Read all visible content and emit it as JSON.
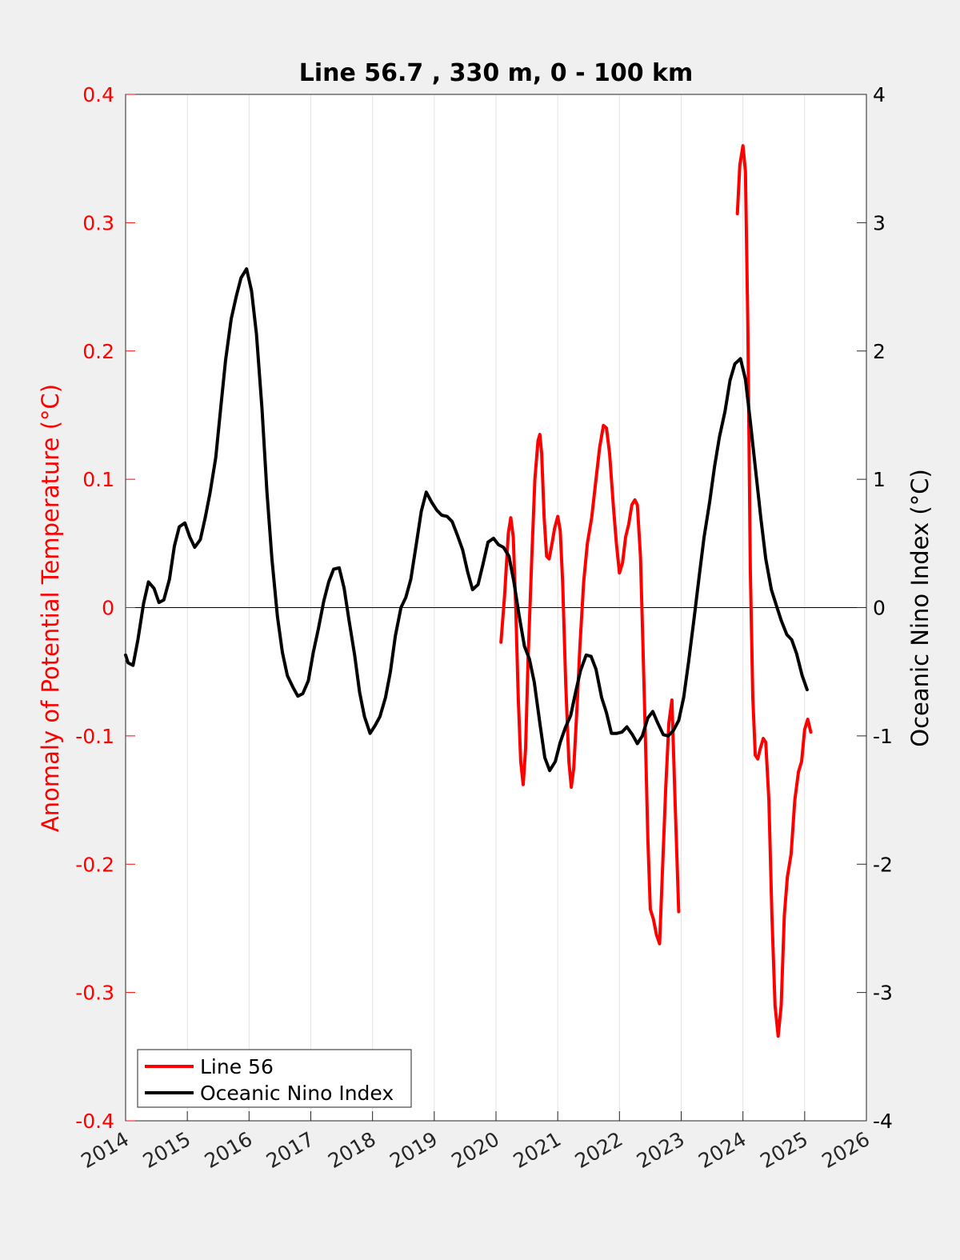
{
  "chart_data": {
    "type": "line",
    "title": "Line 56.7 , 330 m, 0 - 100 km",
    "xlabel": "",
    "ylabel_left": "Anomaly of Potential Temperature (°C)",
    "ylabel_right": "Oceanic Nino Index (°C)",
    "xlim": [
      2014,
      2026
    ],
    "ylim_left": [
      -0.4,
      0.4
    ],
    "ylim_right": [
      -4,
      4
    ],
    "x_ticks": [
      2014,
      2015,
      2016,
      2017,
      2018,
      2019,
      2020,
      2021,
      2022,
      2023,
      2024,
      2025,
      2026
    ],
    "x_tick_labels": [
      "2014",
      "2015",
      "2016",
      "2017",
      "2018",
      "2019",
      "2020",
      "2021",
      "2022",
      "2023",
      "2024",
      "2025",
      "2026"
    ],
    "y_left_ticks": [
      -0.4,
      -0.3,
      -0.2,
      -0.1,
      0,
      0.1,
      0.2,
      0.3,
      0.4
    ],
    "y_left_tick_labels": [
      "-0.4",
      "-0.3",
      "-0.2",
      "-0.1",
      "0",
      "0.1",
      "0.2",
      "0.3",
      "0.4"
    ],
    "y_right_ticks": [
      -4,
      -3,
      -2,
      -1,
      0,
      1,
      2,
      3,
      4
    ],
    "y_right_tick_labels": [
      "-4",
      "-3",
      "-2",
      "-1",
      "0",
      "1",
      "2",
      "3",
      "4"
    ],
    "grid": "vertical",
    "zero_line": true,
    "legend_position": "bottom-left",
    "colors": {
      "line56": "#ff0000",
      "oni": "#000000",
      "left_axis": "#ff0000",
      "right_axis": "#000000"
    },
    "series": [
      {
        "name": "Line 56",
        "axis": "left",
        "color": "#ff0000",
        "segments": [
          [
            [
              2020.08,
              -0.027
            ],
            [
              2020.14,
              0.01
            ],
            [
              2020.2,
              0.058
            ],
            [
              2020.24,
              0.07
            ],
            [
              2020.28,
              0.055
            ],
            [
              2020.32,
              0.0
            ],
            [
              2020.36,
              -0.07
            ],
            [
              2020.4,
              -0.12
            ],
            [
              2020.44,
              -0.138
            ],
            [
              2020.48,
              -0.11
            ],
            [
              2020.52,
              -0.04
            ],
            [
              2020.58,
              0.04
            ],
            [
              2020.63,
              0.1
            ],
            [
              2020.68,
              0.13
            ],
            [
              2020.71,
              0.135
            ],
            [
              2020.74,
              0.12
            ],
            [
              2020.78,
              0.07
            ],
            [
              2020.82,
              0.04
            ],
            [
              2020.86,
              0.038
            ],
            [
              2020.9,
              0.048
            ],
            [
              2020.95,
              0.062
            ],
            [
              2021.0,
              0.071
            ],
            [
              2021.04,
              0.06
            ],
            [
              2021.08,
              0.02
            ],
            [
              2021.13,
              -0.06
            ],
            [
              2021.18,
              -0.12
            ],
            [
              2021.22,
              -0.14
            ],
            [
              2021.26,
              -0.125
            ],
            [
              2021.31,
              -0.08
            ],
            [
              2021.36,
              -0.03
            ],
            [
              2021.42,
              0.02
            ],
            [
              2021.48,
              0.05
            ],
            [
              2021.55,
              0.07
            ],
            [
              2021.62,
              0.1
            ],
            [
              2021.68,
              0.125
            ],
            [
              2021.74,
              0.142
            ],
            [
              2021.79,
              0.14
            ],
            [
              2021.84,
              0.12
            ],
            [
              2021.9,
              0.08
            ],
            [
              2021.95,
              0.05
            ],
            [
              2022.0,
              0.027
            ],
            [
              2022.05,
              0.035
            ],
            [
              2022.1,
              0.055
            ],
            [
              2022.15,
              0.065
            ],
            [
              2022.2,
              0.08
            ],
            [
              2022.25,
              0.084
            ],
            [
              2022.29,
              0.08
            ],
            [
              2022.34,
              0.04
            ],
            [
              2022.38,
              -0.03
            ],
            [
              2022.42,
              -0.1
            ],
            [
              2022.46,
              -0.18
            ],
            [
              2022.5,
              -0.235
            ],
            [
              2022.55,
              -0.243
            ],
            [
              2022.6,
              -0.255
            ],
            [
              2022.65,
              -0.262
            ],
            [
              2022.7,
              -0.2
            ],
            [
              2022.75,
              -0.14
            ],
            [
              2022.8,
              -0.09
            ],
            [
              2022.85,
              -0.072
            ],
            [
              2022.9,
              -0.15
            ],
            [
              2022.96,
              -0.237
            ]
          ],
          [
            [
              2023.91,
              0.307
            ],
            [
              2023.95,
              0.345
            ],
            [
              2024.0,
              0.36
            ],
            [
              2024.04,
              0.34
            ],
            [
              2024.08,
              0.22
            ],
            [
              2024.12,
              0.03
            ],
            [
              2024.16,
              -0.07
            ],
            [
              2024.2,
              -0.115
            ],
            [
              2024.24,
              -0.118
            ],
            [
              2024.28,
              -0.11
            ],
            [
              2024.33,
              -0.102
            ],
            [
              2024.37,
              -0.105
            ],
            [
              2024.42,
              -0.15
            ],
            [
              2024.47,
              -0.24
            ],
            [
              2024.52,
              -0.31
            ],
            [
              2024.57,
              -0.334
            ],
            [
              2024.62,
              -0.31
            ],
            [
              2024.67,
              -0.24
            ],
            [
              2024.72,
              -0.21
            ],
            [
              2024.78,
              -0.192
            ],
            [
              2024.84,
              -0.15
            ],
            [
              2024.9,
              -0.128
            ],
            [
              2024.95,
              -0.12
            ],
            [
              2025.0,
              -0.095
            ],
            [
              2025.05,
              -0.087
            ],
            [
              2025.1,
              -0.097
            ]
          ]
        ]
      },
      {
        "name": "Oceanic Nino Index",
        "axis": "right",
        "color": "#000000",
        "segments": [
          [
            [
              2014.0,
              -0.37
            ],
            [
              2014.04,
              -0.43
            ],
            [
              2014.12,
              -0.45
            ],
            [
              2014.2,
              -0.25
            ],
            [
              2014.29,
              0.03
            ],
            [
              2014.37,
              0.2
            ],
            [
              2014.46,
              0.15
            ],
            [
              2014.54,
              0.04
            ],
            [
              2014.62,
              0.06
            ],
            [
              2014.71,
              0.22
            ],
            [
              2014.79,
              0.48
            ],
            [
              2014.87,
              0.63
            ],
            [
              2014.96,
              0.66
            ],
            [
              2015.04,
              0.55
            ],
            [
              2015.12,
              0.47
            ],
            [
              2015.21,
              0.53
            ],
            [
              2015.29,
              0.7
            ],
            [
              2015.37,
              0.9
            ],
            [
              2015.46,
              1.17
            ],
            [
              2015.54,
              1.55
            ],
            [
              2015.62,
              1.93
            ],
            [
              2015.71,
              2.25
            ],
            [
              2015.79,
              2.42
            ],
            [
              2015.87,
              2.57
            ],
            [
              2015.96,
              2.64
            ],
            [
              2016.04,
              2.47
            ],
            [
              2016.12,
              2.13
            ],
            [
              2016.21,
              1.55
            ],
            [
              2016.29,
              0.9
            ],
            [
              2016.37,
              0.38
            ],
            [
              2016.46,
              -0.07
            ],
            [
              2016.54,
              -0.35
            ],
            [
              2016.62,
              -0.53
            ],
            [
              2016.71,
              -0.62
            ],
            [
              2016.79,
              -0.69
            ],
            [
              2016.87,
              -0.67
            ],
            [
              2016.96,
              -0.57
            ],
            [
              2017.04,
              -0.35
            ],
            [
              2017.12,
              -0.17
            ],
            [
              2017.21,
              0.05
            ],
            [
              2017.29,
              0.2
            ],
            [
              2017.37,
              0.3
            ],
            [
              2017.46,
              0.31
            ],
            [
              2017.54,
              0.15
            ],
            [
              2017.62,
              -0.1
            ],
            [
              2017.71,
              -0.37
            ],
            [
              2017.79,
              -0.66
            ],
            [
              2017.87,
              -0.85
            ],
            [
              2017.96,
              -0.98
            ],
            [
              2018.04,
              -0.92
            ],
            [
              2018.12,
              -0.85
            ],
            [
              2018.21,
              -0.7
            ],
            [
              2018.29,
              -0.5
            ],
            [
              2018.37,
              -0.22
            ],
            [
              2018.46,
              0.0
            ],
            [
              2018.54,
              0.08
            ],
            [
              2018.62,
              0.22
            ],
            [
              2018.71,
              0.5
            ],
            [
              2018.79,
              0.75
            ],
            [
              2018.87,
              0.9
            ],
            [
              2018.96,
              0.82
            ],
            [
              2019.04,
              0.76
            ],
            [
              2019.12,
              0.72
            ],
            [
              2019.21,
              0.71
            ],
            [
              2019.29,
              0.67
            ],
            [
              2019.37,
              0.57
            ],
            [
              2019.46,
              0.45
            ],
            [
              2019.54,
              0.28
            ],
            [
              2019.62,
              0.14
            ],
            [
              2019.71,
              0.18
            ],
            [
              2019.79,
              0.34
            ],
            [
              2019.87,
              0.51
            ],
            [
              2019.96,
              0.54
            ],
            [
              2020.04,
              0.49
            ],
            [
              2020.12,
              0.47
            ],
            [
              2020.21,
              0.4
            ],
            [
              2020.29,
              0.2
            ],
            [
              2020.37,
              -0.05
            ],
            [
              2020.46,
              -0.3
            ],
            [
              2020.54,
              -0.4
            ],
            [
              2020.62,
              -0.58
            ],
            [
              2020.71,
              -0.9
            ],
            [
              2020.79,
              -1.17
            ],
            [
              2020.87,
              -1.27
            ],
            [
              2020.96,
              -1.2
            ],
            [
              2021.04,
              -1.05
            ],
            [
              2021.12,
              -0.94
            ],
            [
              2021.21,
              -0.84
            ],
            [
              2021.29,
              -0.66
            ],
            [
              2021.37,
              -0.49
            ],
            [
              2021.46,
              -0.37
            ],
            [
              2021.54,
              -0.38
            ],
            [
              2021.62,
              -0.48
            ],
            [
              2021.71,
              -0.7
            ],
            [
              2021.79,
              -0.82
            ],
            [
              2021.87,
              -0.98
            ],
            [
              2021.96,
              -0.98
            ],
            [
              2022.04,
              -0.97
            ],
            [
              2022.12,
              -0.93
            ],
            [
              2022.21,
              -0.99
            ],
            [
              2022.29,
              -1.06
            ],
            [
              2022.37,
              -1.0
            ],
            [
              2022.46,
              -0.86
            ],
            [
              2022.54,
              -0.81
            ],
            [
              2022.62,
              -0.9
            ],
            [
              2022.71,
              -0.99
            ],
            [
              2022.79,
              -1.0
            ],
            [
              2022.87,
              -0.96
            ],
            [
              2022.96,
              -0.88
            ],
            [
              2023.04,
              -0.7
            ],
            [
              2023.12,
              -0.42
            ],
            [
              2023.21,
              -0.08
            ],
            [
              2023.29,
              0.24
            ],
            [
              2023.37,
              0.55
            ],
            [
              2023.46,
              0.82
            ],
            [
              2023.54,
              1.1
            ],
            [
              2023.62,
              1.33
            ],
            [
              2023.71,
              1.53
            ],
            [
              2023.79,
              1.77
            ],
            [
              2023.87,
              1.9
            ],
            [
              2023.96,
              1.94
            ],
            [
              2024.04,
              1.78
            ],
            [
              2024.12,
              1.45
            ],
            [
              2024.21,
              1.05
            ],
            [
              2024.29,
              0.7
            ],
            [
              2024.37,
              0.38
            ],
            [
              2024.46,
              0.14
            ],
            [
              2024.54,
              0.02
            ],
            [
              2024.62,
              -0.1
            ],
            [
              2024.71,
              -0.21
            ],
            [
              2024.79,
              -0.25
            ],
            [
              2024.87,
              -0.36
            ],
            [
              2024.96,
              -0.53
            ],
            [
              2025.04,
              -0.64
            ]
          ]
        ]
      }
    ],
    "legend": [
      {
        "label": "Line 56",
        "color": "#ff0000"
      },
      {
        "label": "Oceanic Nino Index",
        "color": "#000000"
      }
    ]
  }
}
